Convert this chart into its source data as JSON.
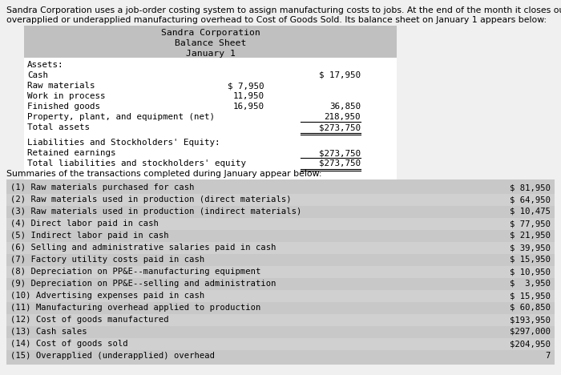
{
  "intro_line1": "Sandra Corporation uses a job-order costing system to assign manufacturing costs to jobs. At the end of the month it closes out any",
  "intro_line2": "overapplied or underapplied manufacturing overhead to Cost of Goods Sold. Its balance sheet on January 1 appears below:",
  "bs_title_lines": [
    "Sandra Corporation",
    "Balance Sheet",
    "January 1"
  ],
  "bs_assets_header": "Assets:",
  "bs_assets": [
    {
      "label": "Cash",
      "col1": "",
      "col2": "$ 17,950"
    },
    {
      "label": "Raw materials",
      "col1": "$ 7,950",
      "col2": ""
    },
    {
      "label": "Work in process",
      "col1": "11,950",
      "col2": ""
    },
    {
      "label": "Finished goods",
      "col1": "16,950",
      "col2": "36,850"
    },
    {
      "label": "Property, plant, and equipment (net)",
      "col1": "",
      "col2": "218,950"
    },
    {
      "label": "Total assets",
      "col1": "",
      "col2": "$273,750"
    }
  ],
  "bs_liab_header": "Liabilities and Stockholders' Equity:",
  "bs_liabilities": [
    {
      "label": "Retained earnings",
      "col2": "$273,750"
    },
    {
      "label": "Total liabilities and stockholders' equity",
      "col2": "$273,750"
    }
  ],
  "summaries_text": "Summaries of the transactions completed during January appear below:",
  "transactions": [
    [
      "(1) Raw materials purchased for cash",
      "$ 81,950"
    ],
    [
      "(2) Raw materials used in production (direct materials)",
      "$ 64,950"
    ],
    [
      "(3) Raw materials used in production (indirect materials)",
      "$ 10,475"
    ],
    [
      "(4) Direct labor paid in cash",
      "$ 77,950"
    ],
    [
      "(5) Indirect labor paid in cash",
      "$ 21,950"
    ],
    [
      "(6) Selling and administrative salaries paid in cash",
      "$ 39,950"
    ],
    [
      "(7) Factory utility costs paid in cash",
      "$ 15,950"
    ],
    [
      "(8) Depreciation on PP&E--manufacturing equipment",
      "$ 10,950"
    ],
    [
      "(9) Depreciation on PP&E--selling and administration",
      "$  3,950"
    ],
    [
      "(10) Advertising expenses paid in cash",
      "$ 15,950"
    ],
    [
      "(11) Manufacturing overhead applied to production",
      "$ 60,850"
    ],
    [
      "(12) Cost of goods manufactured",
      "$193,950"
    ],
    [
      "(13) Cash sales",
      "$297,000"
    ],
    [
      "(14) Cost of goods sold",
      "$204,950"
    ],
    [
      "(15) Overapplied (underapplied) overhead",
      "7"
    ]
  ],
  "color_intro_bg": "#f0f0f0",
  "color_bs_header_bg": "#c0c0c0",
  "color_bs_body_bg": "#ffffff",
  "color_tx_odd": "#c8c8c8",
  "color_tx_even": "#d4d4d4",
  "color_tx_bg": "#c8c8c8",
  "intro_fs": 7.8,
  "bs_title_fs": 8.2,
  "body_fs": 7.8,
  "mono_fs": 7.6
}
